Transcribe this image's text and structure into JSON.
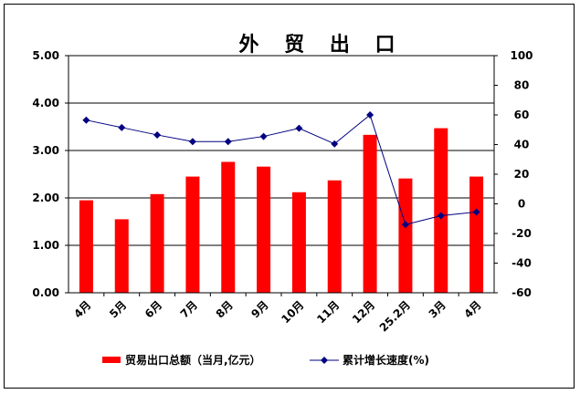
{
  "chart_data": {
    "type": "bar+line",
    "title": "外 贸 出 口",
    "categories": [
      "4月",
      "5月",
      "6月",
      "7月",
      "8月",
      "9月",
      "10月",
      "11月",
      "12月",
      "25.2月",
      "3月",
      "4月"
    ],
    "series": [
      {
        "name": "贸易出口总额（当月,亿元）",
        "type": "bar",
        "axis": "left",
        "color": "#ff0000",
        "values": [
          1.95,
          1.55,
          2.08,
          2.45,
          2.76,
          2.66,
          2.12,
          2.37,
          3.33,
          2.41,
          3.47,
          2.45
        ]
      },
      {
        "name": "累计增长速度(%)",
        "type": "line",
        "axis": "right",
        "color": "#000080",
        "marker": "diamond",
        "values": [
          56.5,
          51.5,
          46.5,
          42.0,
          42.0,
          45.5,
          51.0,
          40.5,
          60.0,
          -14.0,
          -8.0,
          -5.5
        ]
      }
    ],
    "y_left": {
      "min": 0,
      "max": 5,
      "ticks": [
        "0.00",
        "1.00",
        "2.00",
        "3.00",
        "4.00",
        "5.00"
      ]
    },
    "y_right": {
      "min": -60,
      "max": 100,
      "ticks": [
        "-60",
        "-40",
        "-20",
        "0",
        "20",
        "40",
        "60",
        "80",
        "100"
      ]
    },
    "grid": true,
    "legend": "bottom"
  }
}
